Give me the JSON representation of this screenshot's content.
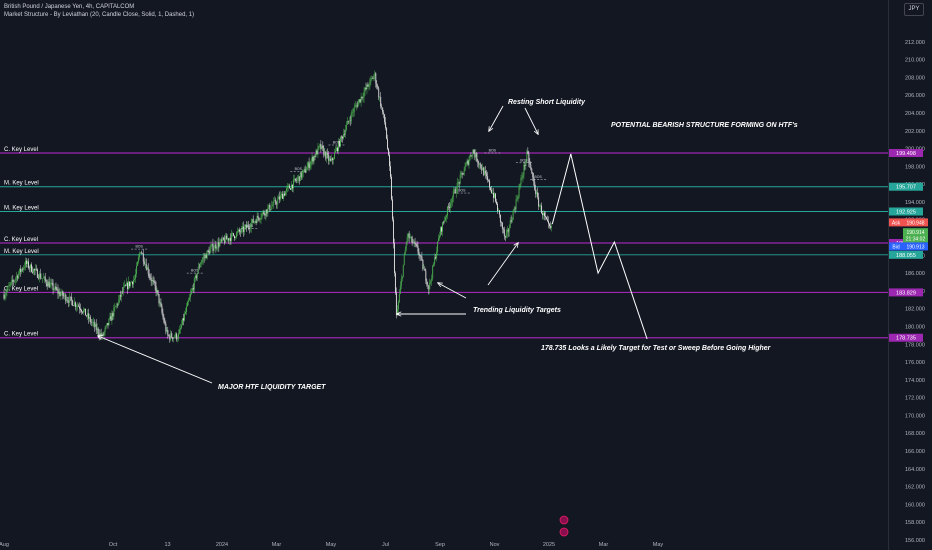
{
  "header": {
    "title": "British Pound / Japanese Yen, 4h, CAPITALCOM",
    "indicator": "Market Structure - By Leviathan (20, Candle Close, Solid, 1, Dashed, 1)",
    "currency_button": "JPY"
  },
  "colors": {
    "background": "#131722",
    "up_candle": "#4caf50",
    "down_candle": "#e0e0e0",
    "c_key_level": "#9c27b0",
    "m_key_level": "#26a69a",
    "annotation": "#ffffff"
  },
  "chart_data": {
    "type": "candlestick",
    "symbol": "British Pound / Japanese Yen",
    "timeframe": "4h",
    "ylim": [
      156,
      214
    ],
    "y_ticks": [
      156,
      158,
      160,
      162,
      164,
      166,
      168,
      170,
      172,
      174,
      176,
      178,
      180,
      182,
      184,
      186,
      188,
      190,
      192,
      194,
      196,
      198,
      200,
      202,
      204,
      206,
      208,
      210,
      212
    ],
    "x_tick_labels": [
      "Aug",
      "Oct",
      "13",
      "2024",
      "Mar",
      "May",
      "Jul",
      "Sep",
      "Nov",
      "2025",
      "Mar",
      "May"
    ],
    "x_tick_positions": [
      0,
      10,
      15,
      20,
      25,
      30,
      35,
      40,
      45,
      50,
      55,
      60
    ],
    "price_path": [
      [
        0,
        183.6
      ],
      [
        2,
        187.1
      ],
      [
        5,
        183.8
      ],
      [
        7,
        182.2
      ],
      [
        9,
        178.8
      ],
      [
        11,
        184.2
      ],
      [
        12,
        185.4
      ],
      [
        12.5,
        188.7
      ],
      [
        13.5,
        185.3
      ],
      [
        14,
        184.0
      ],
      [
        15,
        178.9
      ],
      [
        16,
        178.9
      ],
      [
        18,
        187.2
      ],
      [
        19,
        188.8
      ],
      [
        20,
        189.5
      ],
      [
        22,
        190.9
      ],
      [
        25,
        194.0
      ],
      [
        26,
        195.4
      ],
      [
        27.5,
        197.3
      ],
      [
        29,
        200.2
      ],
      [
        30,
        198.4
      ],
      [
        32,
        204.2
      ],
      [
        34,
        208.3
      ],
      [
        35,
        202.5
      ],
      [
        35.5,
        196.0
      ],
      [
        36,
        181.0
      ],
      [
        37,
        190.3
      ],
      [
        38,
        188.5
      ],
      [
        39,
        184.3
      ],
      [
        40,
        190.6
      ],
      [
        41,
        194.2
      ],
      [
        43,
        199.8
      ],
      [
        44,
        197.4
      ],
      [
        45,
        194.5
      ],
      [
        46,
        189.7
      ],
      [
        47,
        194.1
      ],
      [
        48,
        199.4
      ],
      [
        49,
        194.0
      ],
      [
        50,
        191.0
      ],
      [
        50.3,
        190.9
      ]
    ],
    "candles_note": "",
    "key_levels": [
      {
        "label": "C. Key Level",
        "price": 199.498,
        "tag": "199.498",
        "kind": "C"
      },
      {
        "label": "M. Key Level",
        "price": 195.707,
        "tag": "195.707",
        "kind": "M"
      },
      {
        "label": "M. Key Level",
        "price": 192.925,
        "tag": "192.925",
        "kind": "M"
      },
      {
        "label": "C. Key Level",
        "price": 189.385,
        "tag": "189.385",
        "kind": "C"
      },
      {
        "label": "M. Key Level",
        "price": 188.055,
        "tag": "188.055",
        "kind": "M"
      },
      {
        "label": "C. Key Level",
        "price": 183.829,
        "tag": "183.829",
        "kind": "C"
      },
      {
        "label": "C. Key Level",
        "price": 178.735,
        "tag": "178.735",
        "kind": "C"
      }
    ],
    "price_tags": [
      {
        "label": "Ask",
        "value": "190.948",
        "price": 191.7,
        "color": "#ef5350"
      },
      {
        "label": "",
        "value": "190.914",
        "price": 190.6,
        "color": "#4caf50"
      },
      {
        "label": "",
        "value": "21:34:02",
        "price": 189.9,
        "color": "#4caf50"
      },
      {
        "label": "Bid",
        "value": "190.913",
        "price": 189.0,
        "color": "#2962ff"
      }
    ],
    "projection": [
      [
        50.3,
        191.5
      ],
      [
        52,
        199.4
      ],
      [
        54.5,
        186.0
      ],
      [
        56,
        189.5
      ],
      [
        59,
        178.6
      ]
    ],
    "annotations": {
      "resting": "Resting Short Liquidity",
      "bearish": "POTENTIAL BEARISH STRUCTURE FORMING ON HTF's",
      "trending": "Trending Liquidity Targets",
      "major": "MAJOR HTF LIQUIDITY TARGET",
      "target": "178.735 Looks a Likely Target for Test or Sweep Before Going Higher"
    },
    "bos_label": "BOS"
  }
}
